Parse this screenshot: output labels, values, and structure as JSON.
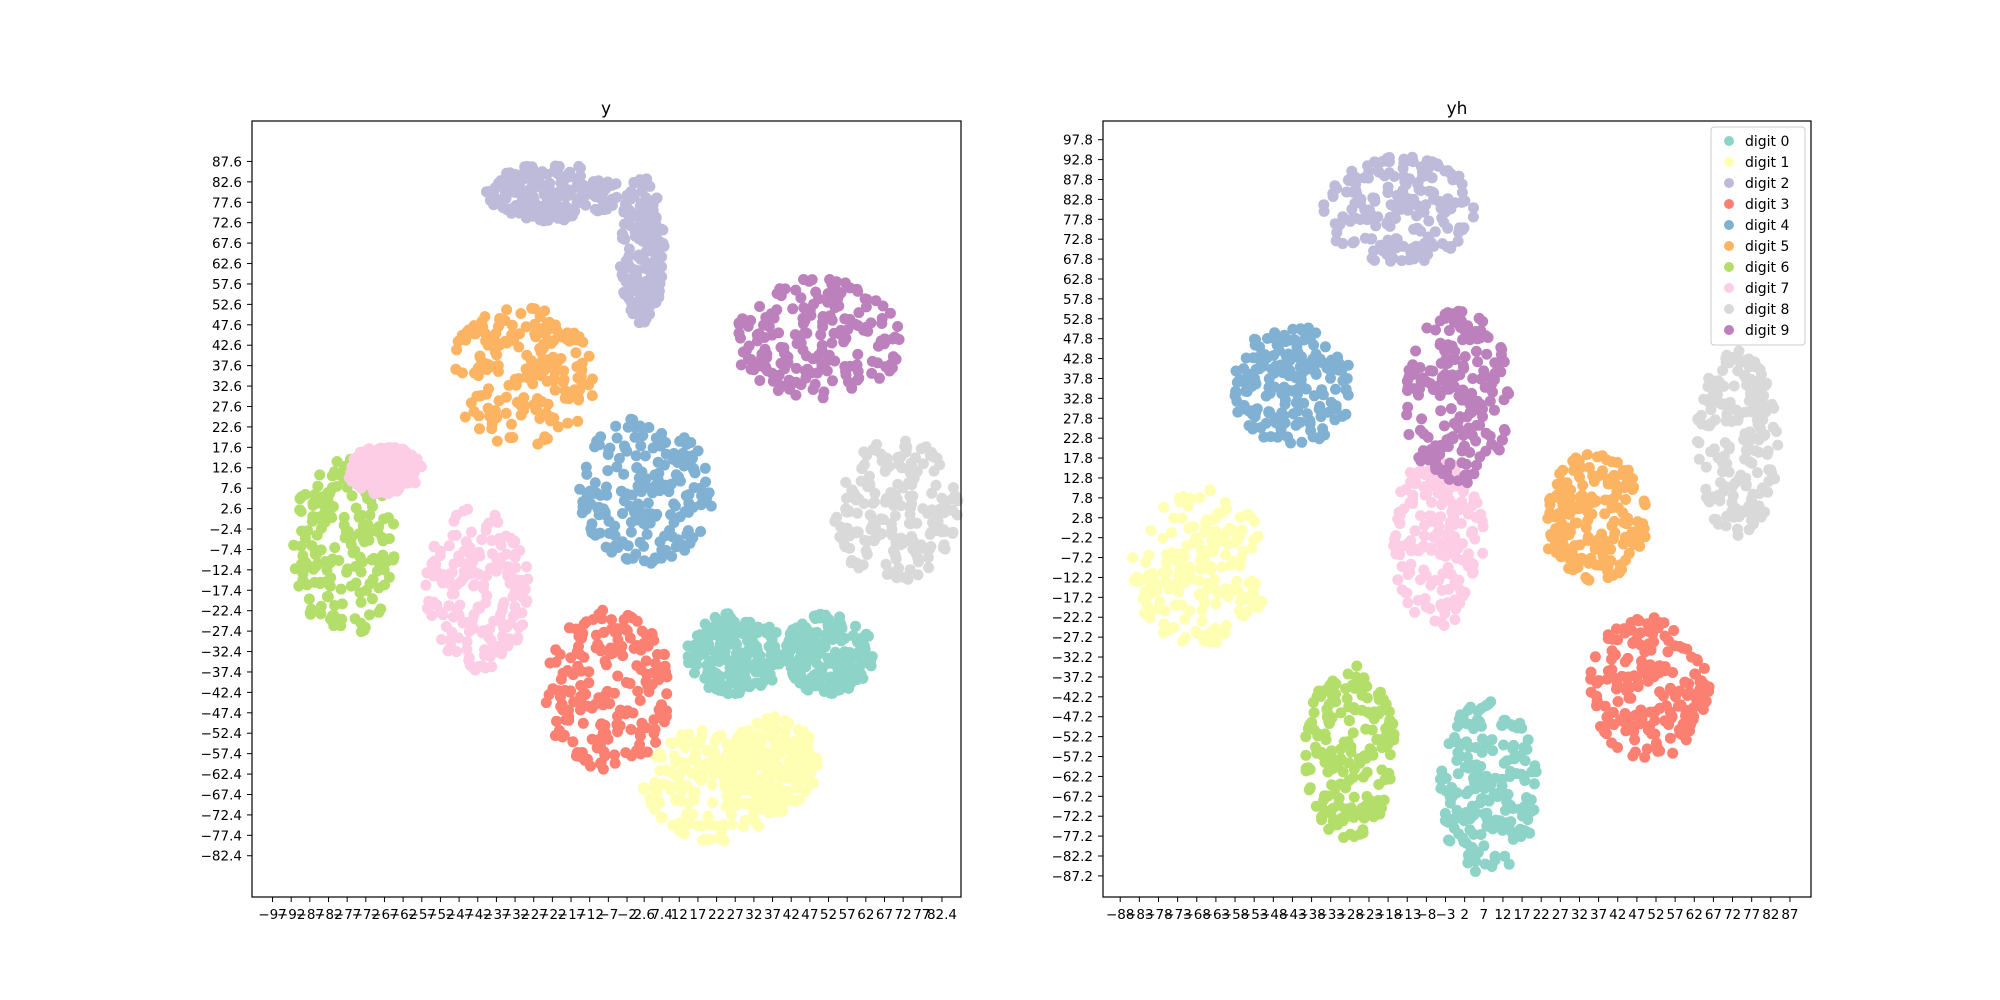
{
  "chart_data": [
    {
      "type": "scatter",
      "title": "y",
      "xlabel": "",
      "ylabel": "",
      "xlim": [
        -102.5,
        87.5
      ],
      "ylim": [
        -92.5,
        97.5
      ],
      "x_ticks": [
        "−97",
        "−92",
        "−87",
        "−82",
        "−77",
        "−72",
        "−67",
        "−62",
        "−57",
        "−52",
        "−47",
        "−42",
        "−37",
        "−32",
        "−27",
        "−22",
        "−17",
        "−12",
        "−7",
        "−2",
        "2.6",
        "7.4",
        "12",
        "17",
        "22",
        "27",
        "32",
        "37",
        "42",
        "47",
        "52",
        "57",
        "62",
        "67",
        "72",
        "77",
        "82.4"
      ],
      "y_ticks": [
        "87.6",
        "82.6",
        "77.6",
        "72.6",
        "67.6",
        "62.6",
        "57.6",
        "52.6",
        "47.6",
        "42.6",
        "37.6",
        "32.6",
        "27.6",
        "22.6",
        "17.6",
        "12.6",
        "7.6",
        "2.6",
        "−2.4",
        "−7.4",
        "−12.4",
        "−17.4",
        "−22.4",
        "−27.4",
        "−32.4",
        "−37.4",
        "−42.4",
        "−47.4",
        "−52.4",
        "−57.4",
        "−62.4",
        "−67.4",
        "−72.4",
        "−77.4",
        "−82.4"
      ],
      "grid": false,
      "series": [
        {
          "name": "digit 0",
          "color": "#8dd3c7",
          "clusters": [
            {
              "cx": 27,
              "cy": -33,
              "rx": 13,
              "ry": 10
            },
            {
              "cx": 52,
              "cy": -33,
              "rx": 12,
              "ry": 10
            }
          ]
        },
        {
          "name": "digit 1",
          "color": "#ffffb3",
          "clusters": [
            {
              "cx": 22,
              "cy": -65,
              "rx": 20,
              "ry": 14
            },
            {
              "cx": 37,
              "cy": -60,
              "rx": 12,
              "ry": 12
            }
          ]
        },
        {
          "name": "digit 2",
          "color": "#bebada",
          "clusters": [
            {
              "cx": -22,
              "cy": 80,
              "rx": 18,
              "ry": 7
            },
            {
              "cx": 2,
              "cy": 66,
              "rx": 6,
              "ry": 18
            }
          ]
        },
        {
          "name": "digit 3",
          "color": "#fb8072",
          "clusters": [
            {
              "cx": -7,
              "cy": -42,
              "rx": 17,
              "ry": 20
            }
          ]
        },
        {
          "name": "digit 4",
          "color": "#80b1d3",
          "clusters": [
            {
              "cx": 3,
              "cy": 7,
              "rx": 18,
              "ry": 18
            }
          ]
        },
        {
          "name": "digit 5",
          "color": "#fdb462",
          "clusters": [
            {
              "cx": -30,
              "cy": 35,
              "rx": 20,
              "ry": 17
            }
          ]
        },
        {
          "name": "digit 6",
          "color": "#b3de69",
          "clusters": [
            {
              "cx": -78,
              "cy": -7,
              "rx": 14,
              "ry": 22
            }
          ]
        },
        {
          "name": "digit 7",
          "color": "#fccde5",
          "clusters": [
            {
              "cx": -42,
              "cy": -17,
              "rx": 14,
              "ry": 20
            },
            {
              "cx": -67,
              "cy": 12,
              "rx": 10,
              "ry": 6
            }
          ]
        },
        {
          "name": "digit 8",
          "color": "#d9d9d9",
          "clusters": [
            {
              "cx": 70,
              "cy": 2,
              "rx": 17,
              "ry": 18
            }
          ]
        },
        {
          "name": "digit 9",
          "color": "#bc80bd",
          "clusters": [
            {
              "cx": 49,
              "cy": 44,
              "rx": 23,
              "ry": 15
            }
          ]
        }
      ]
    },
    {
      "type": "scatter",
      "title": "yh",
      "xlabel": "",
      "ylabel": "",
      "xlim": [
        -92.5,
        92.5
      ],
      "ylim": [
        -92.5,
        102.5
      ],
      "x_ticks": [
        "−88",
        "−83",
        "−78",
        "−73",
        "−68",
        "−63",
        "−58",
        "−53",
        "−48",
        "−43",
        "−38",
        "−33",
        "−28",
        "−23",
        "−18",
        "−13",
        "−8",
        "−3",
        "2",
        "7",
        "12",
        "17",
        "22",
        "27",
        "32",
        "37",
        "42",
        "47",
        "52",
        "57",
        "62",
        "67",
        "72",
        "77",
        "82",
        "87"
      ],
      "y_ticks": [
        "97.8",
        "92.8",
        "87.8",
        "82.8",
        "77.8",
        "72.8",
        "67.8",
        "62.8",
        "57.8",
        "52.8",
        "47.8",
        "42.8",
        "37.8",
        "32.8",
        "27.8",
        "22.8",
        "17.8",
        "12.8",
        "7.8",
        "2.8",
        "−2.2",
        "−7.2",
        "−12.2",
        "−17.2",
        "−22.2",
        "−27.2",
        "−32.2",
        "−37.2",
        "−42.2",
        "−47.2",
        "−52.2",
        "−57.2",
        "−62.2",
        "−67.2",
        "−72.2",
        "−77.2",
        "−82.2",
        "−87.2"
      ],
      "grid": false,
      "legend": "top-right",
      "series": [
        {
          "name": "digit 0",
          "color": "#8dd3c7",
          "clusters": [
            {
              "cx": 8,
              "cy": -65,
              "rx": 13,
              "ry": 22
            }
          ]
        },
        {
          "name": "digit 1",
          "color": "#ffffb3",
          "clusters": [
            {
              "cx": -67,
              "cy": -10,
              "rx": 18,
              "ry": 20
            }
          ]
        },
        {
          "name": "digit 2",
          "color": "#bebada",
          "clusters": [
            {
              "cx": -15,
              "cy": 80,
              "rx": 20,
              "ry": 14
            }
          ]
        },
        {
          "name": "digit 3",
          "color": "#fb8072",
          "clusters": [
            {
              "cx": 50,
              "cy": -40,
              "rx": 16,
              "ry": 18
            }
          ]
        },
        {
          "name": "digit 4",
          "color": "#80b1d3",
          "clusters": [
            {
              "cx": -43,
              "cy": 36,
              "rx": 16,
              "ry": 15
            }
          ]
        },
        {
          "name": "digit 5",
          "color": "#fdb462",
          "clusters": [
            {
              "cx": 36,
              "cy": 3,
              "rx": 14,
              "ry": 16
            }
          ]
        },
        {
          "name": "digit 6",
          "color": "#b3de69",
          "clusters": [
            {
              "cx": -28,
              "cy": -56,
              "rx": 12,
              "ry": 22
            }
          ]
        },
        {
          "name": "digit 7",
          "color": "#fccde5",
          "clusters": [
            {
              "cx": -5,
              "cy": -3,
              "rx": 12,
              "ry": 22
            }
          ]
        },
        {
          "name": "digit 8",
          "color": "#d9d9d9",
          "clusters": [
            {
              "cx": 73,
              "cy": 22,
              "rx": 11,
              "ry": 24
            }
          ]
        },
        {
          "name": "digit 9",
          "color": "#bc80bd",
          "clusters": [
            {
              "cx": 0,
              "cy": 33,
              "rx": 14,
              "ry": 22
            }
          ]
        }
      ]
    }
  ]
}
